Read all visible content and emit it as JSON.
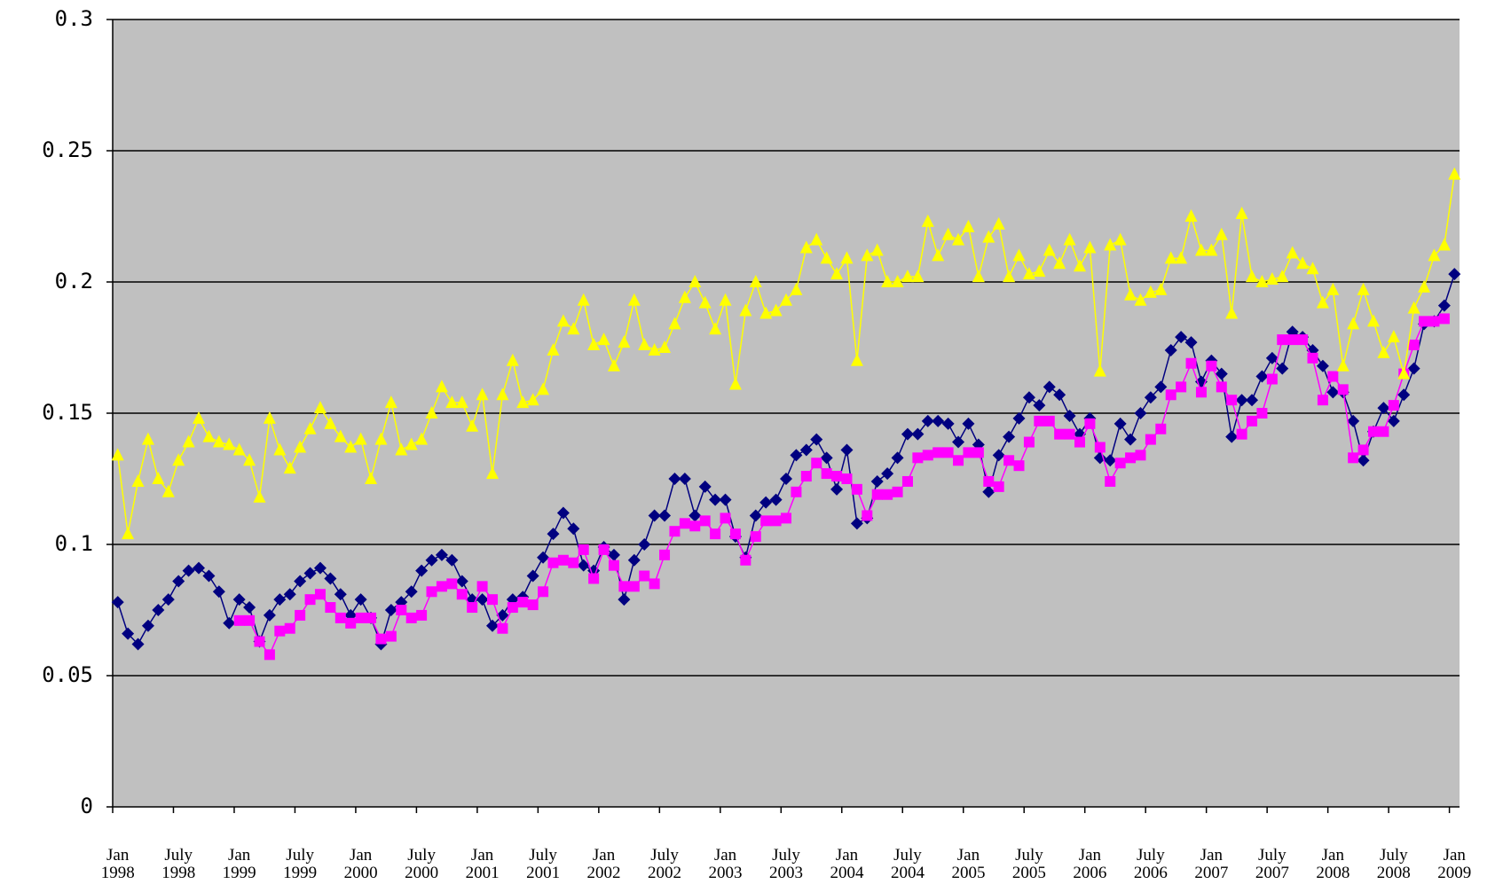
{
  "chart_data": {
    "type": "line",
    "categories": [
      "Jan 1998",
      null,
      null,
      null,
      null,
      null,
      "July 1998",
      null,
      null,
      null,
      null,
      null,
      "Jan 1999",
      null,
      null,
      null,
      null,
      null,
      "July 1999",
      null,
      null,
      null,
      null,
      null,
      "Jan 2000",
      null,
      null,
      null,
      null,
      null,
      "July 2000",
      null,
      null,
      null,
      null,
      null,
      "Jan 2001",
      null,
      null,
      null,
      null,
      null,
      "July 2001",
      null,
      null,
      null,
      null,
      null,
      "Jan 2002",
      null,
      null,
      null,
      null,
      null,
      "July 2002",
      null,
      null,
      null,
      null,
      null,
      "Jan 2003",
      null,
      null,
      null,
      null,
      null,
      "July 2003",
      null,
      null,
      null,
      null,
      null,
      "Jan 2004",
      null,
      null,
      null,
      null,
      null,
      "July 2004",
      null,
      null,
      null,
      null,
      null,
      "Jan 2005",
      null,
      null,
      null,
      null,
      null,
      "July 2005",
      null,
      null,
      null,
      null,
      null,
      "Jan 2006",
      null,
      null,
      null,
      null,
      null,
      "July 2006",
      null,
      null,
      null,
      null,
      null,
      "Jan 2007",
      null,
      null,
      null,
      null,
      null,
      "July 2007",
      null,
      null,
      null,
      null,
      null,
      "Jan 2008",
      null,
      null,
      null,
      null,
      null,
      "July 2008",
      null,
      null,
      null,
      null,
      null,
      "Jan 2009"
    ],
    "series": [
      {
        "color": "#000080",
        "marker": "diamond",
        "values": [
          0.078,
          0.066,
          0.062,
          0.069,
          0.075,
          0.079,
          0.086,
          0.09,
          0.091,
          0.088,
          0.082,
          0.07,
          0.079,
          0.076,
          0.063,
          0.073,
          0.079,
          0.081,
          0.086,
          0.089,
          0.091,
          0.087,
          0.081,
          0.073,
          0.079,
          0.072,
          0.062,
          0.075,
          0.078,
          0.082,
          0.09,
          0.094,
          0.096,
          0.094,
          0.086,
          0.079,
          0.079,
          0.069,
          0.073,
          0.079,
          0.08,
          0.088,
          0.095,
          0.104,
          0.112,
          0.106,
          0.092,
          0.09,
          0.099,
          0.096,
          0.079,
          0.094,
          0.1,
          0.111,
          0.111,
          0.125,
          0.125,
          0.111,
          0.122,
          0.117,
          0.117,
          0.103,
          0.095,
          0.111,
          0.116,
          0.117,
          0.125,
          0.134,
          0.136,
          0.14,
          0.133,
          0.121,
          0.136,
          0.108,
          0.11,
          0.124,
          0.127,
          0.133,
          0.142,
          0.142,
          0.147,
          0.147,
          0.146,
          0.139,
          0.146,
          0.138,
          0.12,
          0.134,
          0.141,
          0.148,
          0.156,
          0.153,
          0.16,
          0.157,
          0.149,
          0.142,
          0.148,
          0.133,
          0.132,
          0.146,
          0.14,
          0.15,
          0.156,
          0.16,
          0.174,
          0.179,
          0.177,
          0.162,
          0.17,
          0.165,
          0.141,
          0.155,
          0.155,
          0.164,
          0.171,
          0.167,
          0.181,
          0.179,
          0.174,
          0.168,
          0.158,
          0.158,
          0.147,
          0.132,
          0.143,
          0.152,
          0.147,
          0.157,
          0.167,
          0.184,
          0.185,
          0.191,
          0.203
        ]
      },
      {
        "color": "#ff00ff",
        "marker": "square",
        "values": [
          null,
          null,
          null,
          null,
          null,
          null,
          null,
          null,
          null,
          null,
          null,
          null,
          0.071,
          0.071,
          0.063,
          0.058,
          0.067,
          0.068,
          0.073,
          0.079,
          0.081,
          0.076,
          0.072,
          0.07,
          0.072,
          0.072,
          0.064,
          0.065,
          0.075,
          0.072,
          0.073,
          0.082,
          0.084,
          0.085,
          0.081,
          0.076,
          0.084,
          0.079,
          0.068,
          0.076,
          0.078,
          0.077,
          0.082,
          0.093,
          0.094,
          0.093,
          0.098,
          0.087,
          0.098,
          0.092,
          0.084,
          0.084,
          0.088,
          0.085,
          0.096,
          0.105,
          0.108,
          0.107,
          0.109,
          0.104,
          0.11,
          0.104,
          0.094,
          0.103,
          0.109,
          0.109,
          0.11,
          0.12,
          0.126,
          0.131,
          0.127,
          0.126,
          0.125,
          0.121,
          0.111,
          0.119,
          0.119,
          0.12,
          0.124,
          0.133,
          0.134,
          0.135,
          0.135,
          0.132,
          0.135,
          0.135,
          0.124,
          0.122,
          0.132,
          0.13,
          0.139,
          0.147,
          0.147,
          0.142,
          0.142,
          0.139,
          0.146,
          0.137,
          0.124,
          0.131,
          0.133,
          0.134,
          0.14,
          0.144,
          0.157,
          0.16,
          0.169,
          0.158,
          0.168,
          0.16,
          0.155,
          0.142,
          0.147,
          0.15,
          0.163,
          0.178,
          0.178,
          0.178,
          0.171,
          0.155,
          0.164,
          0.159,
          0.133,
          0.136,
          0.143,
          0.143,
          0.153,
          0.165,
          0.176,
          0.185,
          0.185,
          0.186,
          null
        ]
      },
      {
        "color": "#ffff00",
        "marker": "triangle",
        "values": [
          0.134,
          0.104,
          0.124,
          0.14,
          0.125,
          0.12,
          0.132,
          0.139,
          0.148,
          0.141,
          0.139,
          0.138,
          0.136,
          0.132,
          0.118,
          0.148,
          0.136,
          0.129,
          0.137,
          0.144,
          0.152,
          0.146,
          0.141,
          0.137,
          0.14,
          0.125,
          0.14,
          0.154,
          0.136,
          0.138,
          0.14,
          0.15,
          0.16,
          0.154,
          0.154,
          0.145,
          0.157,
          0.127,
          0.157,
          0.17,
          0.154,
          0.155,
          0.159,
          0.174,
          0.185,
          0.182,
          0.193,
          0.176,
          0.178,
          0.168,
          0.177,
          0.193,
          0.176,
          0.174,
          0.175,
          0.184,
          0.194,
          0.2,
          0.192,
          0.182,
          0.193,
          0.161,
          0.189,
          0.2,
          0.188,
          0.189,
          0.193,
          0.197,
          0.213,
          0.216,
          0.209,
          0.203,
          0.209,
          0.17,
          0.21,
          0.212,
          0.2,
          0.2,
          0.202,
          0.202,
          0.223,
          0.21,
          0.218,
          0.216,
          0.221,
          0.202,
          0.217,
          0.222,
          0.202,
          0.21,
          0.203,
          0.204,
          0.212,
          0.207,
          0.216,
          0.206,
          0.213,
          0.166,
          0.214,
          0.216,
          0.195,
          0.193,
          0.196,
          0.197,
          0.209,
          0.209,
          0.225,
          0.212,
          0.212,
          0.218,
          0.188,
          0.226,
          0.202,
          0.2,
          0.201,
          0.202,
          0.211,
          0.207,
          0.205,
          0.192,
          0.197,
          0.168,
          0.184,
          0.197,
          0.185,
          0.173,
          0.179,
          0.165,
          0.19,
          0.198,
          0.21,
          0.214,
          0.241
        ]
      }
    ],
    "ylim": [
      0,
      0.3
    ],
    "yticks": [
      0,
      0.05,
      0.1,
      0.15,
      0.2,
      0.25,
      0.3
    ],
    "grid": true,
    "background": "#c0c0c0"
  }
}
